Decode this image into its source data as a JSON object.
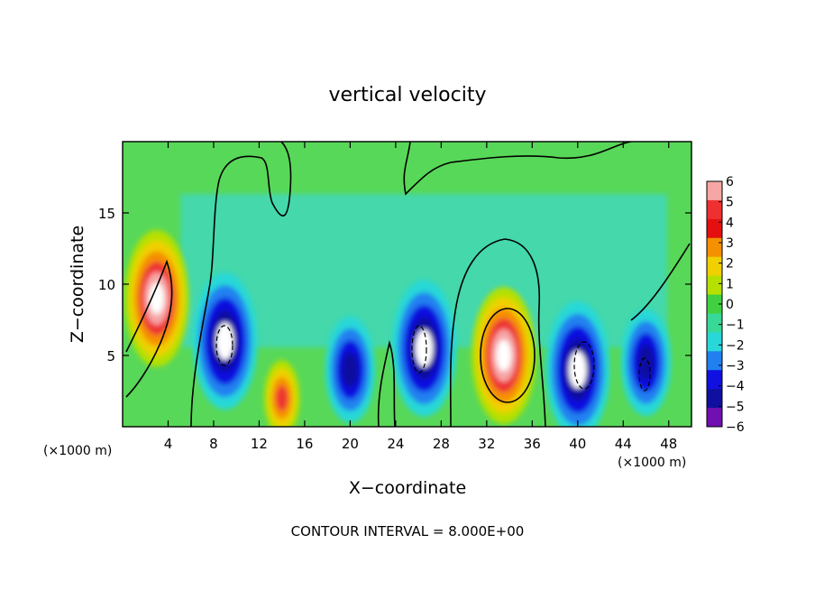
{
  "chart_data": {
    "type": "heatmap",
    "title": "vertical velocity",
    "xlabel": "X−coordinate",
    "ylabel": "Z−coordinate",
    "x_unit_left": "(×1000 m)",
    "x_unit_right": "(×1000 m)",
    "footer": "CONTOUR INTERVAL = 8.000E+00",
    "xlim": [
      0,
      50
    ],
    "ylim": [
      0,
      20
    ],
    "xticks": [
      4,
      8,
      12,
      16,
      20,
      24,
      28,
      32,
      36,
      40,
      44,
      48
    ],
    "yticks": [
      5,
      10,
      15
    ],
    "colorbar": {
      "levels": [
        6,
        5,
        4,
        3,
        2,
        1,
        0,
        -1,
        -2,
        -3,
        -4,
        -5,
        -6
      ],
      "labels": [
        "6",
        "5",
        "4",
        "3",
        "2",
        "1",
        "0",
        "−1",
        "−2",
        "−3",
        "−4",
        "−5",
        "−6"
      ],
      "colors": [
        "#f7a6a6",
        "#ee3030",
        "#e41010",
        "#f59000",
        "#f0d000",
        "#b6e000",
        "#40d040",
        "#38d898",
        "#28d8d8",
        "#2080f0",
        "#1010e0",
        "#1010a0",
        "#7010b0"
      ]
    },
    "features": [
      {
        "label": "updraft",
        "x": 3,
        "z": 9,
        "peak": 9
      },
      {
        "label": "updraft",
        "x": 33.5,
        "z": 5,
        "peak": 9
      },
      {
        "label": "updraft",
        "x": 14,
        "z": 2,
        "peak": 5
      },
      {
        "label": "downdraft",
        "x": 9,
        "z": 6,
        "peak": -9
      },
      {
        "label": "downdraft",
        "x": 26.5,
        "z": 5.5,
        "peak": -9
      },
      {
        "label": "downdraft",
        "x": 40,
        "z": 4,
        "peak": -9
      },
      {
        "label": "downdraft",
        "x": 20,
        "z": 4,
        "peak": -7
      },
      {
        "label": "downdraft",
        "x": 46,
        "z": 4.5,
        "peak": -7
      }
    ]
  }
}
